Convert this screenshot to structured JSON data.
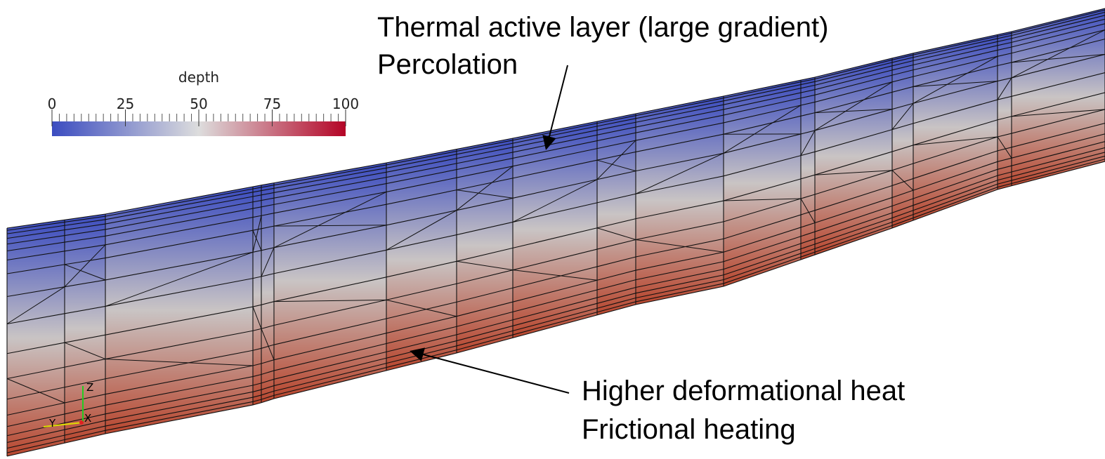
{
  "colorbar": {
    "title": "depth",
    "range": [
      0,
      100
    ],
    "ticks": [
      0,
      25,
      50,
      75,
      100
    ]
  },
  "annotations": [
    {
      "lines": [
        "Thermal active layer (large gradient)",
        "Percolation"
      ]
    },
    {
      "lines": [
        "Higher deformational heat",
        "Frictional heating"
      ]
    }
  ],
  "axes_triad": {
    "labels": [
      "Z",
      "Y",
      "X"
    ]
  }
}
